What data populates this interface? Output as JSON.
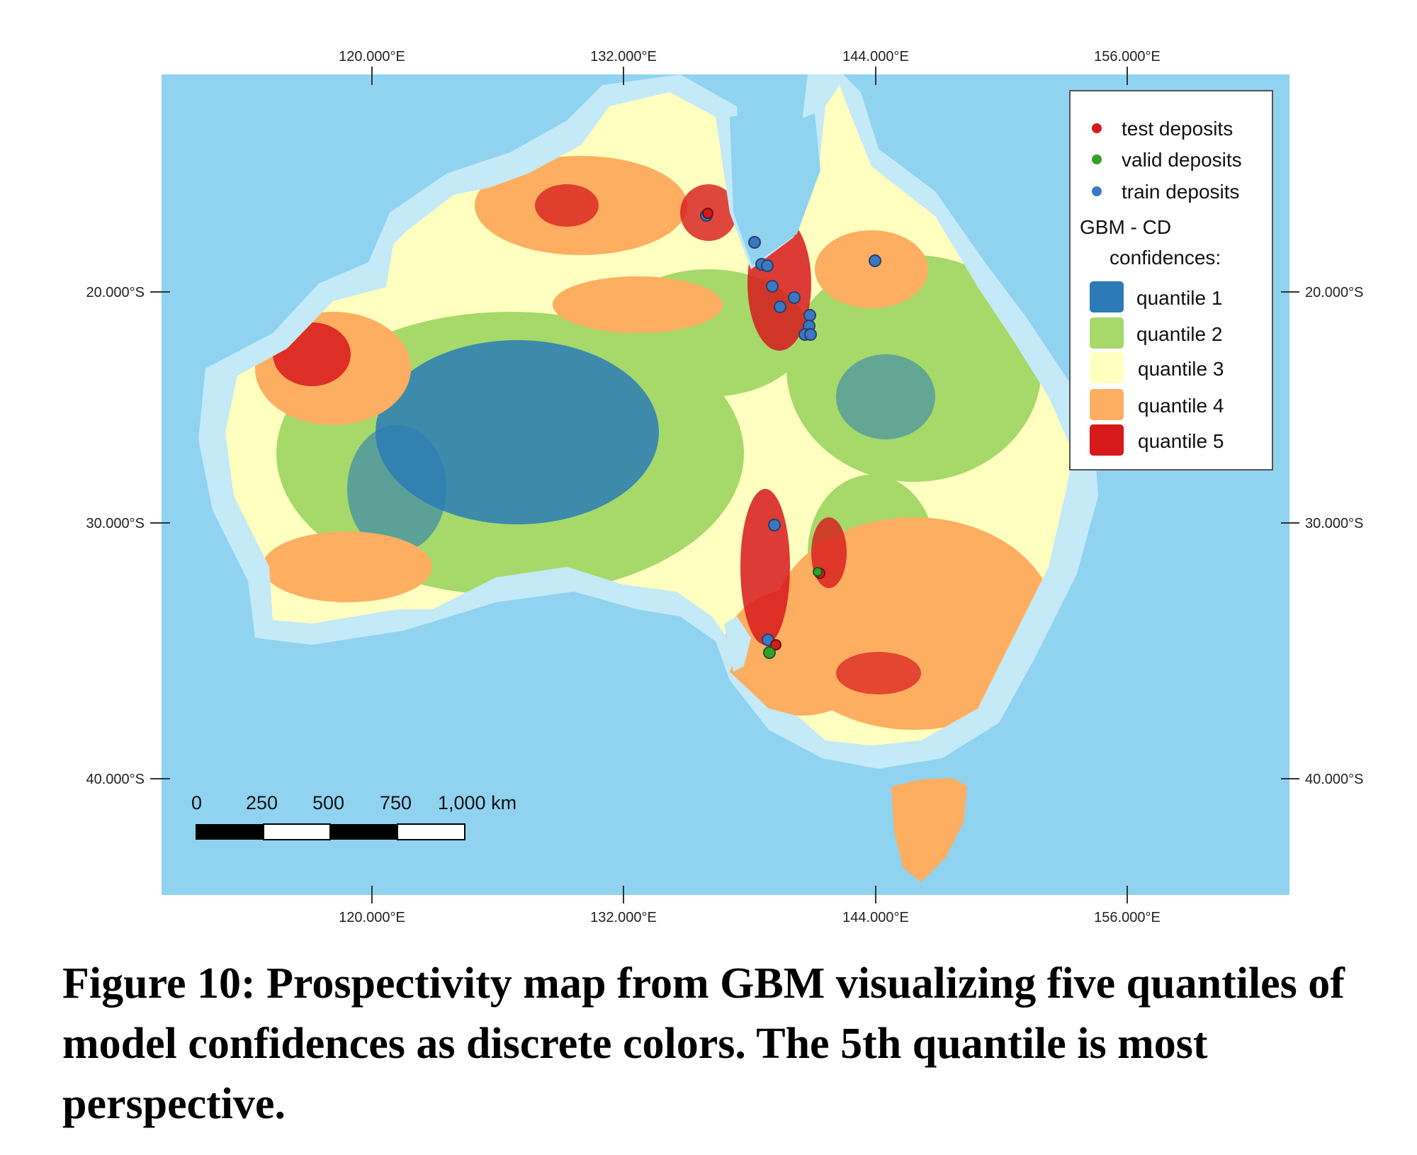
{
  "map": {
    "top_ticks": [
      "120.000°E",
      "132.000°E",
      "144.000°E",
      "156.000°E"
    ],
    "bottom_ticks": [
      "120.000°E",
      "132.000°E",
      "144.000°E",
      "156.000°E"
    ],
    "left_ticks": [
      "20.000°S",
      "30.000°S",
      "40.000°S"
    ],
    "right_ticks": [
      "20.000°S",
      "30.000°S",
      "40.000°S"
    ],
    "colors": {
      "ocean": "#8fd3f0",
      "shallow": "#c4e9f7",
      "quantile_1": "#2c7bb6",
      "quantile_2": "#a6d96a",
      "quantile_3": "#ffffbf",
      "quantile_4": "#fdae61",
      "quantile_5": "#d7191c",
      "test_point": "#d7191c",
      "valid_point": "#33a02c",
      "train_point": "#3a78c2"
    }
  },
  "legend": {
    "points": [
      {
        "label": "test deposits",
        "color": "#d7191c"
      },
      {
        "label": "valid deposits",
        "color": "#33a02c"
      },
      {
        "label": "train deposits",
        "color": "#3a78c2"
      }
    ],
    "title_line1": "GBM - CD",
    "title_line2": "confidences:",
    "quantiles": [
      {
        "label": "quantile 1",
        "color": "#2c7bb6"
      },
      {
        "label": "quantile 2",
        "color": "#a6d96a"
      },
      {
        "label": "quantile 3",
        "color": "#ffffbf"
      },
      {
        "label": "quantile 4",
        "color": "#fdae61"
      },
      {
        "label": "quantile 5",
        "color": "#d7191c"
      }
    ]
  },
  "scale_bar": {
    "labels": [
      "0",
      "250",
      "500",
      "750",
      "1,000 km"
    ]
  },
  "caption": "Figure 10: Prospectivity map from GBM visualizing five quantiles of model confidences as discrete colors. The 5th quantile is most perspective."
}
